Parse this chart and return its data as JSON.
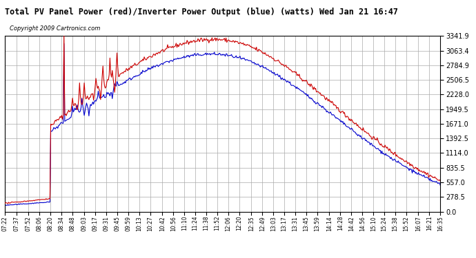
{
  "title": "Total PV Panel Power (red)/Inverter Power Output (blue) (watts) Wed Jan 21 16:47",
  "copyright": "Copyright 2009 Cartronics.com",
  "background_color": "#ffffff",
  "plot_bg_color": "#ffffff",
  "grid_color": "#aaaaaa",
  "line_color_red": "#cc0000",
  "line_color_blue": "#0000cc",
  "ylim": [
    0,
    3341.9
  ],
  "yticks": [
    0.0,
    278.5,
    557.0,
    835.5,
    1114.0,
    1392.5,
    1671.0,
    1949.5,
    2228.0,
    2506.5,
    2784.9,
    3063.4,
    3341.9
  ],
  "xtick_labels": [
    "07:22",
    "07:37",
    "07:52",
    "08:06",
    "08:20",
    "08:34",
    "08:48",
    "09:03",
    "09:17",
    "09:31",
    "09:45",
    "09:59",
    "10:13",
    "10:27",
    "10:42",
    "10:56",
    "11:10",
    "11:24",
    "11:38",
    "11:52",
    "12:06",
    "12:20",
    "12:35",
    "12:49",
    "13:03",
    "13:17",
    "13:31",
    "13:45",
    "13:59",
    "14:14",
    "14:28",
    "14:42",
    "14:56",
    "15:10",
    "15:24",
    "15:38",
    "15:52",
    "16:07",
    "16:21",
    "16:35"
  ]
}
